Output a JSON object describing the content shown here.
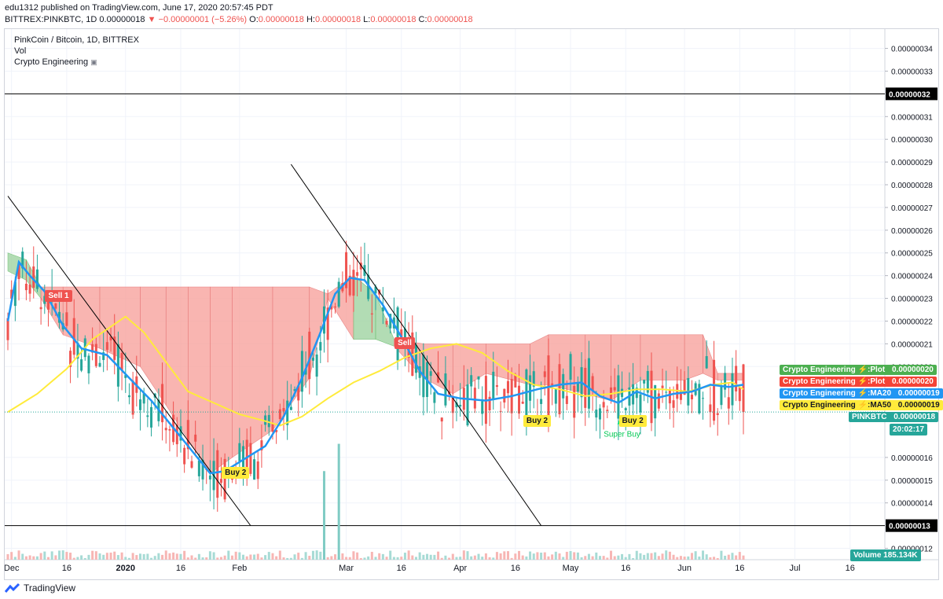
{
  "header": {
    "published": "edu1312 published on TradingView.com, June 17, 2020 20:57:45 PDT",
    "symbol": "BITTREX:PINKBTC, 1D",
    "last": "0.00000018",
    "change": "−0.00000001 (−5.26%)",
    "o_label": "O:",
    "o": "0.00000018",
    "h_label": "H:",
    "h": "0.00000018",
    "l_label": "L:",
    "l": "0.00000018",
    "c_label": "C:",
    "c": "0.00000018"
  },
  "legend": {
    "title": "PinkCoin / Bitcoin, 1D, BITTREX",
    "vol": "Vol",
    "indicator": "Crypto Engineering"
  },
  "footer": {
    "brand": "TradingView"
  },
  "colors": {
    "up": "#26a69a",
    "down": "#ef5350",
    "cloud_red": "#f8a9a4",
    "cloud_green": "#a5d6a7",
    "ma20": "#2196f3",
    "ma50": "#ffeb3b",
    "plot_green": "#4caf50",
    "plot_red": "#f44336",
    "trend": "#000000"
  },
  "chart_data": {
    "type": "candlestick",
    "y_axis_ticks": [
      "0.00000034",
      "0.00000033",
      "0.00000031",
      "0.00000030",
      "0.00000029",
      "0.00000028",
      "0.00000027",
      "0.00000026",
      "0.00000025",
      "0.00000024",
      "0.00000023",
      "0.00000022",
      "0.00000021",
      "0.00000020",
      "0.00000016",
      "0.00000015",
      "0.00000014",
      "0.00000012"
    ],
    "ylim": [
      1.15e-07,
      3.485e-07
    ],
    "x_axis_labels": [
      {
        "label": "Dec",
        "date": "2019-12-01"
      },
      {
        "label": "16",
        "date": "2019-12-16"
      },
      {
        "label": "2020",
        "date": "2020-01-01"
      },
      {
        "label": "16",
        "date": "2020-01-16"
      },
      {
        "label": "Feb",
        "date": "2020-02-01"
      },
      {
        "label": "Mar",
        "date": "2020-03-01"
      },
      {
        "label": "16",
        "date": "2020-03-16"
      },
      {
        "label": "Apr",
        "date": "2020-04-01"
      },
      {
        "label": "16",
        "date": "2020-04-16"
      },
      {
        "label": "May",
        "date": "2020-05-01"
      },
      {
        "label": "16",
        "date": "2020-05-16"
      },
      {
        "label": "Jun",
        "date": "2020-06-01"
      },
      {
        "label": "16",
        "date": "2020-06-16"
      },
      {
        "label": "Jul",
        "date": "2020-07-01"
      },
      {
        "label": "16",
        "date": "2020-07-16"
      }
    ],
    "horizontal_lines": [
      {
        "value": "0.00000032",
        "y": 3.2e-07
      },
      {
        "value": "0.00000013",
        "y": 1.3e-07
      }
    ],
    "price_line": 1.8e-07,
    "ma20": [
      [
        "2019-11-30",
        2.2e-07
      ],
      [
        "2019-12-03",
        2.46e-07
      ],
      [
        "2019-12-06",
        2.4e-07
      ],
      [
        "2019-12-10",
        2.33e-07
      ],
      [
        "2019-12-15",
        2.18e-07
      ],
      [
        "2019-12-20",
        2.08e-07
      ],
      [
        "2019-12-27",
        2.05e-07
      ],
      [
        "2020-01-02",
        1.95e-07
      ],
      [
        "2020-01-08",
        1.85e-07
      ],
      [
        "2020-01-14",
        1.73e-07
      ],
      [
        "2020-01-20",
        1.61e-07
      ],
      [
        "2020-01-24",
        1.53e-07
      ],
      [
        "2020-01-28",
        1.54e-07
      ],
      [
        "2020-02-03",
        1.6e-07
      ],
      [
        "2020-02-08",
        1.65e-07
      ],
      [
        "2020-02-13",
        1.78e-07
      ],
      [
        "2020-02-18",
        1.95e-07
      ],
      [
        "2020-02-23",
        2.15e-07
      ],
      [
        "2020-02-27",
        2.32e-07
      ],
      [
        "2020-03-02",
        2.39e-07
      ],
      [
        "2020-03-06",
        2.38e-07
      ],
      [
        "2020-03-11",
        2.27e-07
      ],
      [
        "2020-03-16",
        2.13e-07
      ],
      [
        "2020-03-21",
        1.98e-07
      ],
      [
        "2020-03-26",
        1.88e-07
      ],
      [
        "2020-04-01",
        1.86e-07
      ],
      [
        "2020-04-08",
        1.85e-07
      ],
      [
        "2020-04-15",
        1.87e-07
      ],
      [
        "2020-04-22",
        1.9e-07
      ],
      [
        "2020-04-28",
        1.92e-07
      ],
      [
        "2020-05-04",
        1.93e-07
      ],
      [
        "2020-05-09",
        1.87e-07
      ],
      [
        "2020-05-14",
        1.84e-07
      ],
      [
        "2020-05-19",
        1.89e-07
      ],
      [
        "2020-05-24",
        1.86e-07
      ],
      [
        "2020-05-29",
        1.88e-07
      ],
      [
        "2020-06-03",
        1.89e-07
      ],
      [
        "2020-06-08",
        1.92e-07
      ],
      [
        "2020-06-13",
        1.91e-07
      ],
      [
        "2020-06-17",
        1.92e-07
      ]
    ],
    "ma50": [
      [
        "2019-11-30",
        1.8e-07
      ],
      [
        "2019-12-08",
        1.88e-07
      ],
      [
        "2019-12-16",
        1.99e-07
      ],
      [
        "2019-12-23",
        2.12e-07
      ],
      [
        "2020-01-01",
        2.22e-07
      ],
      [
        "2020-01-06",
        2.15e-07
      ],
      [
        "2020-01-12",
        2.02e-07
      ],
      [
        "2020-01-18",
        1.89e-07
      ],
      [
        "2020-01-25",
        1.84e-07
      ],
      [
        "2020-02-01",
        1.79e-07
      ],
      [
        "2020-02-08",
        1.76e-07
      ],
      [
        "2020-02-12",
        1.74e-07
      ],
      [
        "2020-02-18",
        1.78e-07
      ],
      [
        "2020-02-25",
        1.86e-07
      ],
      [
        "2020-03-03",
        1.93e-07
      ],
      [
        "2020-03-10",
        1.98e-07
      ],
      [
        "2020-03-17",
        2.04e-07
      ],
      [
        "2020-03-24",
        2.08e-07
      ],
      [
        "2020-03-31",
        2.1e-07
      ],
      [
        "2020-04-07",
        2.06e-07
      ],
      [
        "2020-04-14",
        1.98e-07
      ],
      [
        "2020-04-21",
        1.92e-07
      ],
      [
        "2020-04-28",
        1.9e-07
      ],
      [
        "2020-05-05",
        1.87e-07
      ],
      [
        "2020-05-12",
        1.88e-07
      ],
      [
        "2020-05-19",
        1.9e-07
      ],
      [
        "2020-05-26",
        1.9e-07
      ],
      [
        "2020-06-02",
        1.89e-07
      ],
      [
        "2020-06-09",
        1.92e-07
      ],
      [
        "2020-06-14",
        1.93e-07
      ],
      [
        "2020-06-17",
        1.9e-07
      ]
    ],
    "cloud": [
      [
        "2019-11-30",
        2.5e-07,
        2.42e-07,
        "green"
      ],
      [
        "2019-12-05",
        2.47e-07,
        2.38e-07,
        "green"
      ],
      [
        "2019-12-09",
        2.35e-07,
        2.3e-07,
        "red"
      ],
      [
        "2019-12-15",
        2.35e-07,
        2.14e-07,
        "red"
      ],
      [
        "2019-12-25",
        2.35e-07,
        2.08e-07,
        "red"
      ],
      [
        "2020-01-05",
        2.35e-07,
        2e-07,
        "red"
      ],
      [
        "2020-01-12",
        2.35e-07,
        1.83e-07,
        "red"
      ],
      [
        "2020-01-18",
        2.35e-07,
        1.68e-07,
        "red"
      ],
      [
        "2020-01-24",
        2.35e-07,
        1.53e-07,
        "red"
      ],
      [
        "2020-01-30",
        2.35e-07,
        1.6e-07,
        "red"
      ],
      [
        "2020-02-10",
        2.35e-07,
        1.72e-07,
        "red"
      ],
      [
        "2020-02-20",
        2.35e-07,
        1.95e-07,
        "red"
      ],
      [
        "2020-02-25",
        2.32e-07,
        2.3e-07,
        "red"
      ],
      [
        "2020-03-03",
        2.4e-07,
        2.12e-07,
        "green"
      ],
      [
        "2020-03-09",
        2.32e-07,
        2.12e-07,
        "green"
      ],
      [
        "2020-03-14",
        2.12e-07,
        2.09e-07,
        "red"
      ],
      [
        "2020-03-22",
        2.1e-07,
        1.95e-07,
        "red"
      ],
      [
        "2020-03-30",
        2.1e-07,
        1.88e-07,
        "red"
      ],
      [
        "2020-04-08",
        2.1e-07,
        1.97e-07,
        "red"
      ],
      [
        "2020-04-20",
        2.1e-07,
        1.92e-07,
        "red"
      ],
      [
        "2020-04-25",
        2.14e-07,
        1.92e-07,
        "red"
      ],
      [
        "2020-05-05",
        2.14e-07,
        1.88e-07,
        "red"
      ],
      [
        "2020-05-12",
        2.14e-07,
        1.85e-07,
        "red"
      ],
      [
        "2020-05-20",
        2.14e-07,
        1.94e-07,
        "red"
      ],
      [
        "2020-06-01",
        2.14e-07,
        1.94e-07,
        "red"
      ],
      [
        "2020-06-06",
        2.14e-07,
        1.97e-07,
        "red"
      ],
      [
        "2020-06-10",
        1.97e-07,
        1.94e-07,
        "red"
      ],
      [
        "2020-06-17",
        1.97e-07,
        1.94e-07,
        "red"
      ]
    ],
    "trendlines": [
      [
        [
          "2019-11-30",
          2.75e-07
        ],
        [
          "2020-02-04",
          1.3e-07
        ]
      ],
      [
        [
          "2020-02-15",
          2.89e-07
        ],
        [
          "2020-04-23",
          1.3e-07
        ]
      ]
    ],
    "volume_spikes": [
      [
        "2020-02-24",
        1.54e-07
      ],
      [
        "2020-02-28",
        1.66e-07
      ]
    ],
    "signals": [
      {
        "text": "Sell 1",
        "date": "2019-12-11",
        "value": 2.31e-07,
        "kind": "sell"
      },
      {
        "text": "Sell",
        "date": "2020-03-15",
        "value": 2.1e-07,
        "kind": "sell"
      },
      {
        "text": "Buy 2",
        "date": "2020-01-28",
        "value": 1.53e-07,
        "kind": "buy"
      },
      {
        "text": "Buy 2",
        "date": "2020-04-19",
        "value": 1.76e-07,
        "kind": "buy"
      },
      {
        "text": "Buy 2",
        "date": "2020-05-15",
        "value": 1.76e-07,
        "kind": "buy"
      }
    ],
    "super_buy": {
      "text": "Super Buy",
      "date": "2020-05-15",
      "value": 1.76e-07
    },
    "right_labels": [
      {
        "text": "Crypto Engineering ⚡:Plot",
        "value": "0.00000020",
        "bg": "#4caf50",
        "color": "#ffffff"
      },
      {
        "text": "Crypto Engineering ⚡:Plot",
        "value": "0.00000020",
        "bg": "#f44336",
        "color": "#ffffff"
      },
      {
        "text": "Crypto Engineering ⚡:MA20",
        "value": "0.00000019",
        "bg": "#2196f3",
        "color": "#ffffff"
      },
      {
        "text": "Crypto Engineering ⚡:MA50",
        "value": "0.00000019",
        "bg": "#ffeb3b",
        "color": "#131722"
      },
      {
        "text": "PINKBTC",
        "value": "0.00000018",
        "bg": "#26a69a",
        "color": "#ffffff"
      }
    ],
    "countdown": "20:02:17",
    "volume_label": "Volume",
    "volume_value": "185.134K"
  }
}
